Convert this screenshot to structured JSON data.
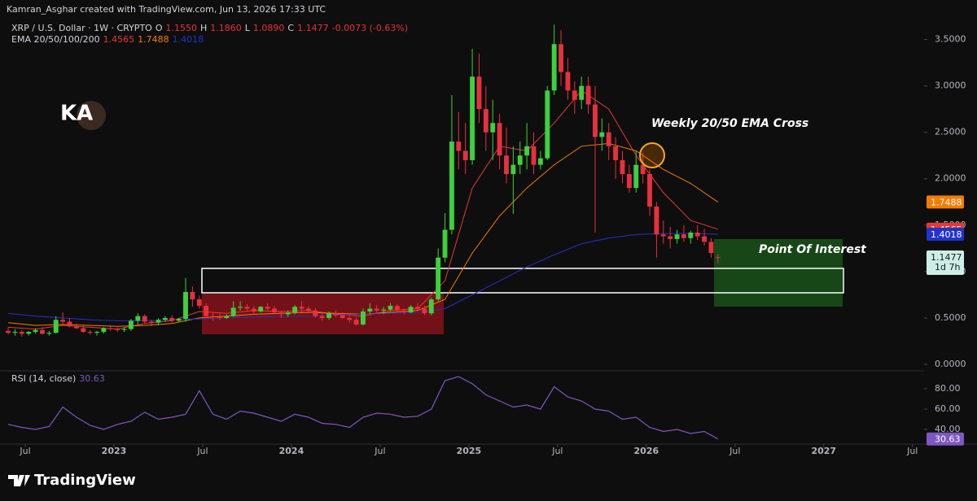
{
  "header": {
    "attribution": "Kamran_Asghar created with TradingView.com, Jun 13, 2026 17:33 UTC",
    "watermark": "KA"
  },
  "footer": {
    "brand": "TradingView"
  },
  "annotations": {
    "ema_cross": "Weekly 20/50 EMA Cross",
    "poi": "Point Of Interest"
  },
  "chart_data": [
    {
      "type": "candlestick",
      "title": "XRP / U.S. Dollar · 1W · CRYPTO",
      "ohlc_legend": [
        "O",
        "1.1550",
        "H",
        "1.1860",
        "L",
        "1.0890",
        "C",
        "1.1477",
        "-0.0073 (-0.63%)"
      ],
      "up_color": "#3cd23c",
      "down_color": "#e8303d",
      "ohlc": [
        [
          0.36,
          0.4,
          0.32,
          0.34
        ],
        [
          0.34,
          0.38,
          0.31,
          0.35
        ],
        [
          0.35,
          0.37,
          0.3,
          0.33
        ],
        [
          0.33,
          0.36,
          0.31,
          0.35
        ],
        [
          0.35,
          0.39,
          0.33,
          0.37
        ],
        [
          0.37,
          0.4,
          0.32,
          0.33
        ],
        [
          0.33,
          0.36,
          0.31,
          0.34
        ],
        [
          0.34,
          0.52,
          0.33,
          0.48
        ],
        [
          0.48,
          0.56,
          0.42,
          0.46
        ],
        [
          0.46,
          0.5,
          0.4,
          0.41
        ],
        [
          0.41,
          0.44,
          0.38,
          0.39
        ],
        [
          0.39,
          0.42,
          0.34,
          0.35
        ],
        [
          0.35,
          0.37,
          0.32,
          0.34
        ],
        [
          0.34,
          0.36,
          0.31,
          0.35
        ],
        [
          0.35,
          0.4,
          0.33,
          0.39
        ],
        [
          0.39,
          0.42,
          0.36,
          0.38
        ],
        [
          0.38,
          0.4,
          0.35,
          0.37
        ],
        [
          0.37,
          0.4,
          0.35,
          0.38
        ],
        [
          0.38,
          0.49,
          0.36,
          0.47
        ],
        [
          0.47,
          0.55,
          0.43,
          0.52
        ],
        [
          0.52,
          0.54,
          0.44,
          0.46
        ],
        [
          0.46,
          0.48,
          0.41,
          0.45
        ],
        [
          0.45,
          0.5,
          0.42,
          0.48
        ],
        [
          0.48,
          0.52,
          0.46,
          0.5
        ],
        [
          0.5,
          0.53,
          0.45,
          0.47
        ],
        [
          0.47,
          0.5,
          0.46,
          0.49
        ],
        [
          0.49,
          0.93,
          0.46,
          0.78
        ],
        [
          0.78,
          0.84,
          0.62,
          0.7
        ],
        [
          0.7,
          0.74,
          0.6,
          0.63
        ],
        [
          0.63,
          0.66,
          0.5,
          0.52
        ],
        [
          0.52,
          0.56,
          0.47,
          0.51
        ],
        [
          0.51,
          0.55,
          0.48,
          0.5
        ],
        [
          0.5,
          0.54,
          0.49,
          0.52
        ],
        [
          0.52,
          0.68,
          0.51,
          0.61
        ],
        [
          0.61,
          0.68,
          0.58,
          0.62
        ],
        [
          0.62,
          0.65,
          0.58,
          0.6
        ],
        [
          0.6,
          0.63,
          0.55,
          0.57
        ],
        [
          0.57,
          0.63,
          0.56,
          0.62
        ],
        [
          0.62,
          0.66,
          0.58,
          0.6
        ],
        [
          0.6,
          0.63,
          0.54,
          0.56
        ],
        [
          0.56,
          0.58,
          0.5,
          0.54
        ],
        [
          0.54,
          0.58,
          0.51,
          0.56
        ],
        [
          0.56,
          0.64,
          0.54,
          0.62
        ],
        [
          0.62,
          0.68,
          0.56,
          0.6
        ],
        [
          0.6,
          0.63,
          0.55,
          0.58
        ],
        [
          0.58,
          0.61,
          0.5,
          0.52
        ],
        [
          0.52,
          0.55,
          0.47,
          0.5
        ],
        [
          0.5,
          0.57,
          0.48,
          0.55
        ],
        [
          0.55,
          0.58,
          0.51,
          0.53
        ],
        [
          0.53,
          0.56,
          0.49,
          0.5
        ],
        [
          0.5,
          0.52,
          0.45,
          0.48
        ],
        [
          0.48,
          0.51,
          0.42,
          0.43
        ],
        [
          0.43,
          0.6,
          0.42,
          0.57
        ],
        [
          0.57,
          0.66,
          0.54,
          0.6
        ],
        [
          0.6,
          0.64,
          0.55,
          0.58
        ],
        [
          0.58,
          0.62,
          0.54,
          0.59
        ],
        [
          0.59,
          0.66,
          0.57,
          0.63
        ],
        [
          0.63,
          0.65,
          0.56,
          0.58
        ],
        [
          0.58,
          0.6,
          0.54,
          0.56
        ],
        [
          0.56,
          0.64,
          0.55,
          0.62
        ],
        [
          0.62,
          0.66,
          0.58,
          0.6
        ],
        [
          0.6,
          0.63,
          0.53,
          0.55
        ],
        [
          0.55,
          0.72,
          0.53,
          0.7
        ],
        [
          0.7,
          1.25,
          0.68,
          1.15
        ],
        [
          1.15,
          1.63,
          1.1,
          1.45
        ],
        [
          1.45,
          2.9,
          1.4,
          2.4
        ],
        [
          2.4,
          2.72,
          2.1,
          2.3
        ],
        [
          2.3,
          2.6,
          2.05,
          2.2
        ],
        [
          2.2,
          3.4,
          2.15,
          3.1
        ],
        [
          3.1,
          3.35,
          2.6,
          2.75
        ],
        [
          2.75,
          3.0,
          2.3,
          2.5
        ],
        [
          2.5,
          2.85,
          2.2,
          2.6
        ],
        [
          2.6,
          2.7,
          2.1,
          2.25
        ],
        [
          2.25,
          2.55,
          1.95,
          2.05
        ],
        [
          2.05,
          2.35,
          1.62,
          2.15
        ],
        [
          2.15,
          2.4,
          2.05,
          2.25
        ],
        [
          2.25,
          2.6,
          2.1,
          2.35
        ],
        [
          2.35,
          2.5,
          2.05,
          2.15
        ],
        [
          2.15,
          2.3,
          2.1,
          2.22
        ],
        [
          2.22,
          3.0,
          2.2,
          2.95
        ],
        [
          2.95,
          3.66,
          2.9,
          3.45
        ],
        [
          3.45,
          3.6,
          3.0,
          3.15
        ],
        [
          3.15,
          3.3,
          2.85,
          2.95
        ],
        [
          2.95,
          3.05,
          2.7,
          2.85
        ],
        [
          2.85,
          3.1,
          2.75,
          3.0
        ],
        [
          3.0,
          3.1,
          2.7,
          2.8
        ],
        [
          2.8,
          3.0,
          1.42,
          2.45
        ],
        [
          2.45,
          2.65,
          2.3,
          2.5
        ],
        [
          2.5,
          2.6,
          2.2,
          2.35
        ],
        [
          2.35,
          2.45,
          2.0,
          2.2
        ],
        [
          2.2,
          2.3,
          1.95,
          2.05
        ],
        [
          2.05,
          2.15,
          1.85,
          1.9
        ],
        [
          1.9,
          2.3,
          1.85,
          2.15
        ],
        [
          2.15,
          2.28,
          1.95,
          2.05
        ],
        [
          2.05,
          2.1,
          1.6,
          1.7
        ],
        [
          1.7,
          1.75,
          1.15,
          1.4
        ],
        [
          1.4,
          1.55,
          1.3,
          1.38
        ],
        [
          1.38,
          1.48,
          1.25,
          1.35
        ],
        [
          1.35,
          1.45,
          1.3,
          1.4
        ],
        [
          1.4,
          1.5,
          1.32,
          1.36
        ],
        [
          1.36,
          1.44,
          1.3,
          1.42
        ],
        [
          1.42,
          1.5,
          1.34,
          1.38
        ],
        [
          1.38,
          1.46,
          1.28,
          1.32
        ],
        [
          1.32,
          1.36,
          1.15,
          1.2
        ],
        [
          1.155,
          1.186,
          1.089,
          1.1477
        ]
      ],
      "xlim": [
        -1.2,
        134.2
      ],
      "xticks": [
        {
          "value": 2.5,
          "label": "Jul"
        },
        {
          "value": 15.5,
          "label": "2023"
        },
        {
          "value": 28.5,
          "label": "Jul"
        },
        {
          "value": 41.5,
          "label": "2024"
        },
        {
          "value": 54.5,
          "label": "Jul"
        },
        {
          "value": 67.5,
          "label": "2025"
        },
        {
          "value": 80.5,
          "label": "Jul"
        },
        {
          "value": 93.5,
          "label": "2026"
        },
        {
          "value": 106.5,
          "label": "Jul"
        },
        {
          "value": 119.5,
          "label": "2027"
        },
        {
          "value": 132.5,
          "label": "Jul"
        }
      ],
      "ylim": [
        -0.07,
        3.68
      ],
      "yticks": [
        {
          "value": 0,
          "label": "0.0000"
        },
        {
          "value": 0.5,
          "label": "0.5000"
        },
        {
          "value": 1,
          "label": "1.0000"
        },
        {
          "value": 1.5,
          "label": "1.5000"
        },
        {
          "value": 2,
          "label": "2.0000"
        },
        {
          "value": 2.5,
          "label": "2.5000"
        },
        {
          "value": 3,
          "label": "3.0000"
        },
        {
          "value": 3.5,
          "label": "3.5000"
        }
      ],
      "last_price_color": "#cdeee6",
      "countdown": "1d 7h",
      "ema": {
        "label": "EMA 20/50/100/200",
        "x": [
          0,
          4,
          8,
          12,
          16,
          20,
          24,
          28,
          32,
          36,
          40,
          44,
          48,
          52,
          56,
          60,
          64,
          68,
          72,
          76,
          80,
          84,
          88,
          92,
          96,
          100,
          104
        ],
        "series": [
          {
            "color": "#e53935",
            "values": [
              0.4,
              0.38,
              0.42,
              0.4,
              0.38,
              0.44,
              0.47,
              0.57,
              0.55,
              0.58,
              0.57,
              0.58,
              0.54,
              0.52,
              0.58,
              0.6,
              0.9,
              1.9,
              2.35,
              2.3,
              2.6,
              2.95,
              2.75,
              2.25,
              1.85,
              1.55,
              1.4565
            ]
          },
          {
            "color": "#f57c00",
            "values": [
              0.45,
              0.42,
              0.43,
              0.42,
              0.41,
              0.42,
              0.44,
              0.5,
              0.52,
              0.54,
              0.55,
              0.56,
              0.55,
              0.54,
              0.56,
              0.58,
              0.7,
              1.2,
              1.6,
              1.9,
              2.15,
              2.35,
              2.38,
              2.3,
              2.1,
              1.95,
              1.7488
            ]
          },
          {
            "color": "#2233cc",
            "values": [
              0.55,
              0.52,
              0.5,
              0.48,
              0.47,
              0.47,
              0.48,
              0.49,
              0.5,
              0.51,
              0.52,
              0.52,
              0.53,
              0.54,
              0.55,
              0.56,
              0.6,
              0.75,
              0.9,
              1.05,
              1.18,
              1.3,
              1.36,
              1.4,
              1.41,
              1.41,
              1.4018
            ]
          }
        ]
      }
    },
    {
      "type": "line",
      "title": "RSI (14, close)",
      "color": "#7e57c2",
      "x": [
        0,
        2,
        4,
        6,
        8,
        10,
        12,
        14,
        16,
        18,
        20,
        22,
        24,
        26,
        28,
        30,
        32,
        34,
        36,
        38,
        40,
        42,
        44,
        46,
        48,
        50,
        52,
        54,
        56,
        58,
        60,
        62,
        64,
        66,
        68,
        70,
        72,
        74,
        76,
        78,
        80,
        82,
        84,
        86,
        88,
        90,
        92,
        94,
        96,
        98,
        100,
        102,
        104
      ],
      "values": [
        45,
        42,
        40,
        43,
        62,
        52,
        44,
        40,
        45,
        48,
        57,
        50,
        52,
        55,
        78,
        55,
        50,
        58,
        56,
        52,
        48,
        55,
        52,
        46,
        45,
        42,
        52,
        56,
        55,
        52,
        53,
        60,
        88,
        92,
        85,
        74,
        68,
        62,
        64,
        60,
        82,
        72,
        68,
        60,
        58,
        50,
        52,
        42,
        38,
        40,
        36,
        38,
        30.63
      ],
      "ylim": [
        26.4,
        92.8
      ],
      "yticks": [
        {
          "value": 40,
          "label": "40.00"
        },
        {
          "value": 60,
          "label": "60.00"
        },
        {
          "value": 80,
          "label": "80.00"
        }
      ]
    }
  ]
}
